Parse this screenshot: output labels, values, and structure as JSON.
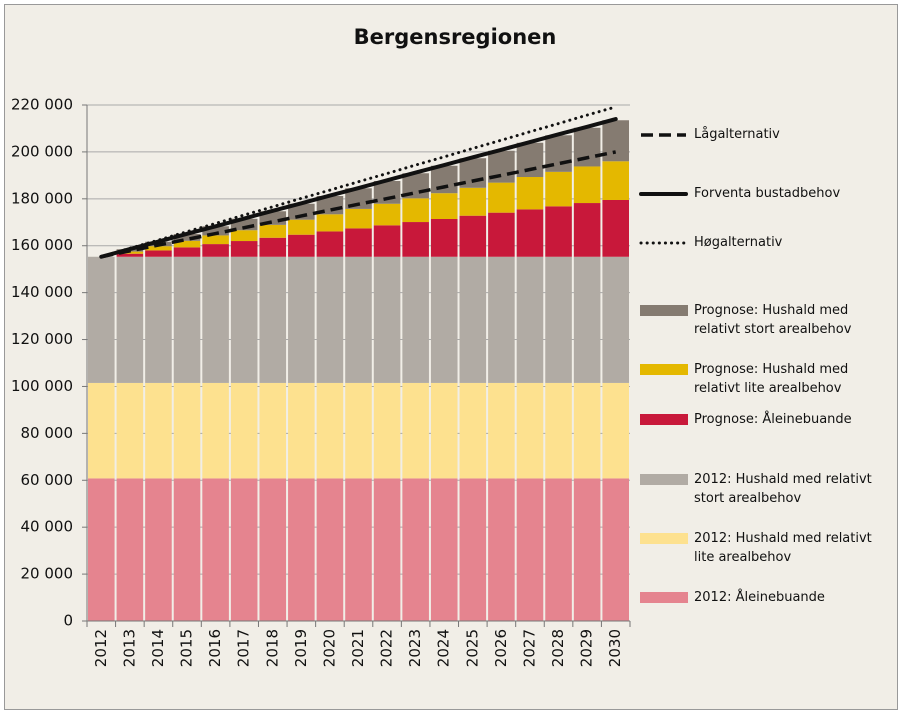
{
  "chart_data": {
    "type": "bar",
    "title": "Bergensregionen",
    "categories": [
      "2012",
      "2013",
      "2014",
      "2015",
      "2016",
      "2017",
      "2018",
      "2019",
      "2020",
      "2021",
      "2022",
      "2023",
      "2024",
      "2025",
      "2026",
      "2027",
      "2028",
      "2029",
      "2030"
    ],
    "ylim": [
      0,
      220000
    ],
    "yticks": [
      0,
      {
        "value": 20000,
        "label": "20 000"
      },
      {
        "value": 40000,
        "label": "40 000"
      },
      {
        "value": 60000,
        "label": "60 000"
      },
      {
        "value": 80000,
        "label": "80 000"
      },
      {
        "value": 100000,
        "label": "100 000"
      },
      {
        "value": 120000,
        "label": "120 000"
      },
      {
        "value": 140000,
        "label": "140 000"
      },
      {
        "value": 160000,
        "label": "160 000"
      },
      {
        "value": 180000,
        "label": "180 000"
      },
      {
        "value": 200000,
        "label": "200 000"
      },
      {
        "value": 220000,
        "label": "220 000"
      }
    ],
    "grid": true,
    "series": [
      {
        "name": "2012: Åleinebuande",
        "type": "bar",
        "color": "#e5848f",
        "values": [
          60800,
          60800,
          60800,
          60800,
          60800,
          60800,
          60800,
          60800,
          60800,
          60800,
          60800,
          60800,
          60800,
          60800,
          60800,
          60800,
          60800,
          60800,
          60800
        ]
      },
      {
        "name": "2012: Hushald med relativt lite arealbehov",
        "type": "bar",
        "color": "#fde18f",
        "values": [
          40700,
          40700,
          40700,
          40700,
          40700,
          40700,
          40700,
          40700,
          40700,
          40700,
          40700,
          40700,
          40700,
          40700,
          40700,
          40700,
          40700,
          40700,
          40700
        ]
      },
      {
        "name": "2012: Hushald med relativt stort arealbehov",
        "type": "bar",
        "color": "#b1aba4",
        "values": [
          53800,
          53800,
          53800,
          53800,
          53800,
          53800,
          53800,
          53800,
          53800,
          53800,
          53800,
          53800,
          53800,
          53800,
          53800,
          53800,
          53800,
          53800,
          53800
        ]
      },
      {
        "name": "Prognose: Åleinebuande",
        "type": "bar",
        "color": "#c8183a",
        "values": [
          0,
          1300,
          2700,
          4000,
          5400,
          6700,
          8100,
          9400,
          10800,
          12100,
          13400,
          14800,
          16100,
          17500,
          18800,
          20200,
          21500,
          22900,
          24200
        ]
      },
      {
        "name": "Prognose: Hushald med relativt lite arealbehov",
        "type": "bar",
        "color": "#e4b800",
        "values": [
          0,
          900,
          1800,
          2800,
          3700,
          4600,
          5500,
          6400,
          7300,
          8300,
          9200,
          10100,
          11000,
          11900,
          12800,
          13800,
          14700,
          15600,
          16500
        ]
      },
      {
        "name": "Prognose: Hushald med relativt stort arealbehov",
        "type": "bar",
        "color": "#857b71",
        "values": [
          0,
          1000,
          1900,
          2900,
          3900,
          4900,
          5800,
          6800,
          7800,
          8800,
          9700,
          10700,
          11700,
          12600,
          13600,
          14600,
          15600,
          16500,
          17500
        ]
      },
      {
        "name": "Høgalternativ",
        "type": "line",
        "style": "dotted",
        "color": "#111111",
        "values": [
          155300,
          158900,
          162400,
          166000,
          169500,
          173100,
          176600,
          180200,
          183700,
          187300,
          190800,
          194400,
          197900,
          201500,
          205000,
          208600,
          212100,
          215700,
          219200
        ]
      },
      {
        "name": "Forventa bustadbehov",
        "type": "line",
        "style": "solid",
        "color": "#111111",
        "values": [
          155300,
          158600,
          161800,
          165100,
          168300,
          171600,
          174900,
          178100,
          181400,
          184600,
          187900,
          191200,
          194400,
          197700,
          200900,
          204200,
          207500,
          210700,
          214000
        ]
      },
      {
        "name": "Lågalternativ",
        "type": "line",
        "style": "dashed",
        "color": "#111111",
        "values": [
          155300,
          157800,
          160300,
          162700,
          165200,
          167700,
          170200,
          172700,
          175200,
          177700,
          180100,
          182600,
          185100,
          187600,
          190000,
          192500,
          195000,
          197500,
          200000
        ]
      }
    ]
  }
}
